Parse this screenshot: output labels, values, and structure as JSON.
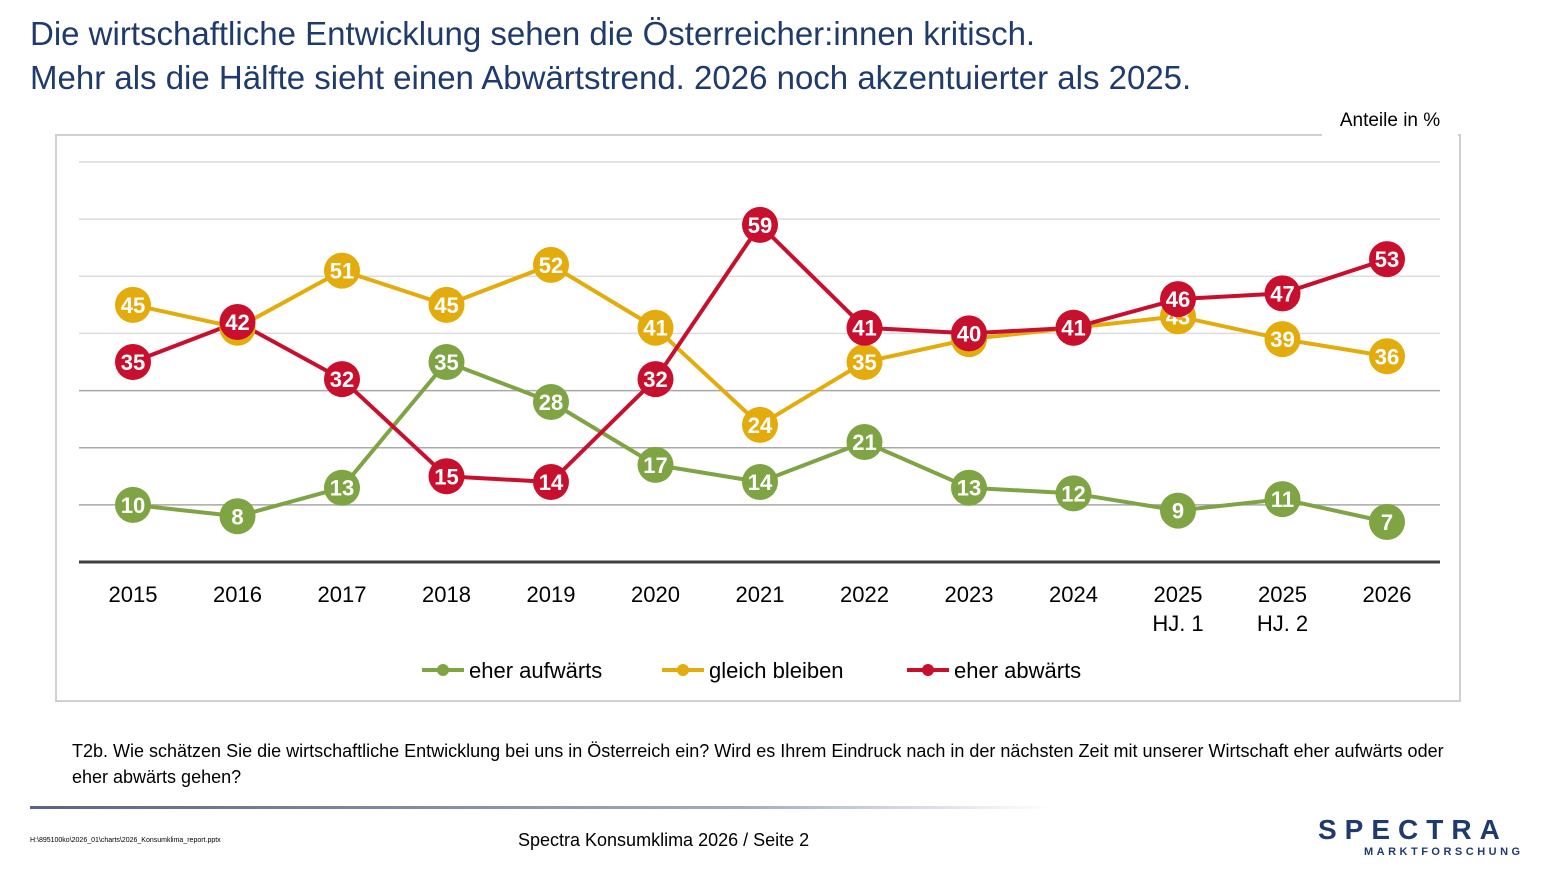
{
  "title_line1": "Die wirtschaftliche Entwicklung sehen die Österreicher:innen kritisch.",
  "title_line2": "Mehr als die Hälfte sieht einen Abwärtstrend. 2026 noch akzentuierter als 2025.",
  "unit_label": "Anteile in %",
  "question": "T2b. Wie schätzen Sie die wirtschaftliche Entwicklung bei uns in Österreich ein? Wird es Ihrem Eindruck nach in der nächsten Zeit mit unserer Wirtschaft eher aufwärts oder eher abwärts gehen?",
  "file_path": "H:\\895100ko\\2026_01\\charts\\2026_Konsumklima_report.pptx",
  "footer": "Spectra Konsumklima 2026  /  Seite 2",
  "logo": {
    "brand": "SPECTRA",
    "sub": "MARKTFORSCHUNG"
  },
  "chart_data": {
    "type": "line",
    "title": "",
    "xlabel": "",
    "ylabel": "Anteile in %",
    "ylim": [
      0,
      70
    ],
    "grid": true,
    "legend": "bottom",
    "categories": [
      "2015",
      "2016",
      "2017",
      "2018",
      "2019",
      "2020",
      "2021",
      "2022",
      "2023",
      "2024",
      "2025\nHJ. 1",
      "2025\nHJ. 2",
      "2026"
    ],
    "series": [
      {
        "name": "eher aufwärts",
        "color": "#7fa444",
        "values": [
          10,
          8,
          13,
          35,
          28,
          17,
          14,
          21,
          13,
          12,
          9,
          11,
          7
        ]
      },
      {
        "name": "gleich bleiben",
        "color": "#e3ac0c",
        "values": [
          45,
          41,
          51,
          45,
          52,
          41,
          24,
          35,
          39,
          41,
          43,
          39,
          36
        ]
      },
      {
        "name": "eher abwärts",
        "color": "#c8102e",
        "values": [
          35,
          42,
          32,
          15,
          14,
          32,
          59,
          41,
          40,
          41,
          46,
          47,
          53
        ]
      }
    ]
  }
}
